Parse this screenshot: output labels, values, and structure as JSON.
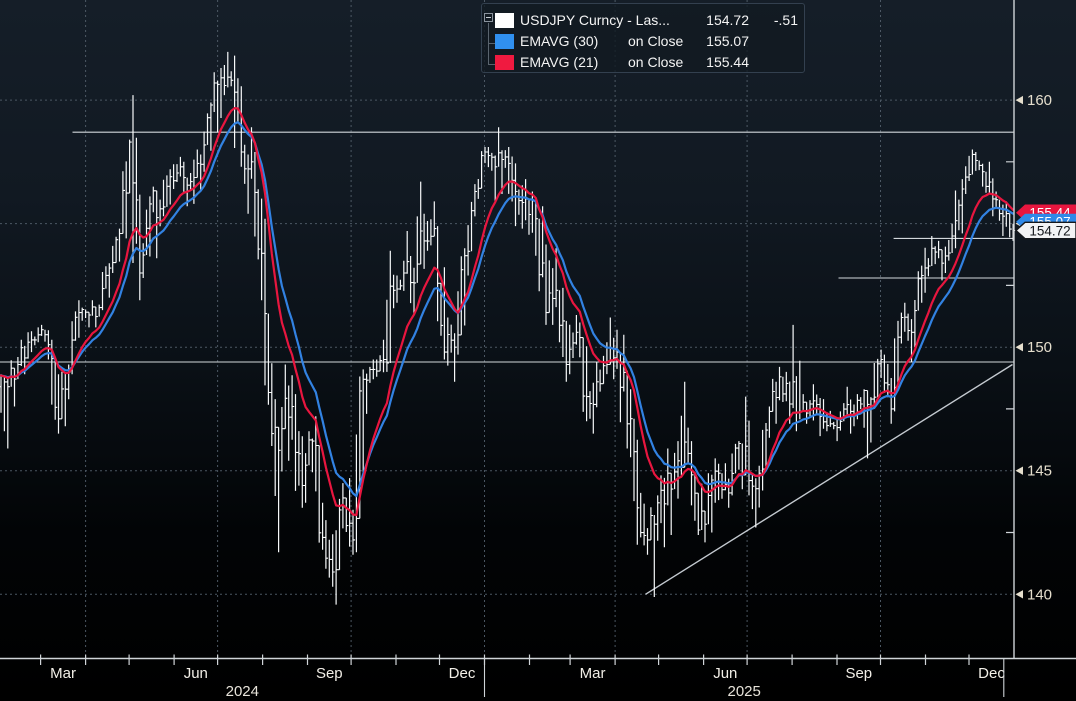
{
  "legend": {
    "rows": [
      {
        "label": "USDJPY Curncy - Las...",
        "value": "154.72",
        "change": "-.51",
        "swatch": "#ffffff"
      },
      {
        "label": "EMAVG (30)",
        "mid": "on Close",
        "value": "155.07",
        "swatch": "#3090f0"
      },
      {
        "label": "EMAVG (21)",
        "mid": "on Close",
        "value": "155.44",
        "swatch": "#f01a40"
      }
    ]
  },
  "chart_data": {
    "type": "bar",
    "title": "USDJPY Curncy with EMAVG(30) and EMAVG(21) on Close",
    "frequency_of_samples": "weekly [close, high, low]",
    "x_start_date": "2024-02-02",
    "x_end_date": "2026-01-01",
    "bars": [
      [
        148.4,
        148.9,
        145.9
      ],
      [
        149.3,
        149.6,
        147.6
      ],
      [
        150.2,
        150.6,
        148.9
      ],
      [
        150.5,
        150.8,
        149.8
      ],
      [
        150.1,
        150.9,
        149.5
      ],
      [
        147.1,
        150.3,
        146.5
      ],
      [
        149.0,
        149.3,
        146.8
      ],
      [
        151.4,
        151.9,
        148.9
      ],
      [
        151.3,
        151.6,
        150.8
      ],
      [
        151.6,
        151.9,
        150.8
      ],
      [
        153.2,
        153.4,
        151.5
      ],
      [
        154.6,
        154.8,
        153.0
      ],
      [
        158.3,
        158.4,
        154.4
      ],
      [
        153.0,
        160.2,
        151.9
      ],
      [
        155.8,
        156.1,
        152.8
      ],
      [
        155.6,
        156.5,
        153.6
      ],
      [
        156.9,
        157.2,
        155.3
      ],
      [
        157.3,
        157.7,
        156.4
      ],
      [
        156.7,
        157.5,
        155.7
      ],
      [
        157.4,
        158.0,
        155.8
      ],
      [
        159.8,
        159.9,
        157.1
      ],
      [
        160.9,
        161.3,
        158.7
      ],
      [
        160.8,
        161.95,
        160.2
      ],
      [
        157.9,
        161.8,
        157.3
      ],
      [
        157.5,
        158.9,
        155.4
      ],
      [
        153.8,
        157.9,
        151.9
      ],
      [
        146.5,
        155.2,
        146.0
      ],
      [
        146.7,
        147.9,
        141.7
      ],
      [
        147.6,
        149.3,
        145.4
      ],
      [
        144.4,
        148.1,
        143.5
      ],
      [
        146.2,
        146.6,
        143.7
      ],
      [
        142.3,
        147.2,
        141.8
      ],
      [
        140.9,
        143.0,
        140.3
      ],
      [
        143.9,
        144.5,
        139.58
      ],
      [
        142.2,
        144.7,
        141.6
      ],
      [
        148.7,
        149.1,
        141.7
      ],
      [
        149.1,
        149.5,
        147.3
      ],
      [
        149.5,
        150.3,
        148.8
      ],
      [
        152.3,
        153.9,
        149.0
      ],
      [
        153.0,
        153.5,
        151.8
      ],
      [
        152.6,
        154.7,
        151.3
      ],
      [
        154.3,
        156.7,
        152.6
      ],
      [
        154.8,
        155.9,
        153.9
      ],
      [
        149.8,
        154.9,
        149.5
      ],
      [
        150.0,
        151.2,
        148.6
      ],
      [
        153.7,
        154.0,
        149.7
      ],
      [
        156.3,
        156.6,
        152.9
      ],
      [
        157.9,
        158.1,
        156.0
      ],
      [
        157.3,
        158.1,
        155.9
      ],
      [
        157.7,
        158.9,
        156.2
      ],
      [
        156.3,
        158.1,
        154.9
      ],
      [
        156.0,
        156.8,
        154.8
      ],
      [
        155.2,
        156.3,
        153.7
      ],
      [
        151.4,
        155.7,
        150.9
      ],
      [
        152.3,
        154.0,
        150.9
      ],
      [
        149.3,
        152.4,
        148.6
      ],
      [
        150.6,
        151.3,
        148.9
      ],
      [
        148.0,
        151.0,
        147.0
      ],
      [
        148.6,
        149.4,
        146.5
      ],
      [
        149.3,
        150.2,
        148.2
      ],
      [
        149.8,
        151.2,
        148.7
      ],
      [
        146.9,
        150.5,
        145.9
      ],
      [
        143.5,
        148.3,
        142.0
      ],
      [
        142.2,
        144.1,
        141.6
      ],
      [
        143.7,
        144.0,
        139.89
      ],
      [
        144.9,
        145.9,
        141.9
      ],
      [
        145.4,
        146.2,
        142.4
      ],
      [
        145.7,
        148.6,
        144.8
      ],
      [
        142.6,
        146.2,
        142.4
      ],
      [
        144.0,
        144.9,
        142.1
      ],
      [
        144.9,
        145.5,
        142.5
      ],
      [
        144.1,
        145.3,
        143.5
      ],
      [
        146.1,
        146.2,
        144.0
      ],
      [
        144.6,
        148.0,
        144.0
      ],
      [
        144.9,
        145.2,
        142.7
      ],
      [
        147.4,
        147.6,
        144.2
      ],
      [
        148.8,
        149.2,
        146.9
      ],
      [
        147.7,
        149.0,
        146.9
      ],
      [
        147.4,
        150.9,
        146.6
      ],
      [
        147.7,
        148.1,
        146.9
      ],
      [
        147.2,
        148.5,
        146.4
      ],
      [
        146.9,
        147.9,
        146.6
      ],
      [
        147.0,
        147.4,
        146.2
      ],
      [
        147.4,
        148.4,
        146.5
      ],
      [
        147.7,
        148.1,
        146.8
      ],
      [
        147.9,
        148.3,
        145.5
      ],
      [
        149.5,
        149.9,
        147.5
      ],
      [
        147.5,
        149.7,
        146.9
      ],
      [
        151.2,
        151.4,
        147.4
      ],
      [
        150.6,
        151.8,
        149.4
      ],
      [
        152.9,
        153.3,
        150.0
      ],
      [
        154.0,
        154.5,
        152.2
      ],
      [
        153.4,
        154.3,
        152.7
      ],
      [
        154.5,
        155.0,
        153.0
      ],
      [
        156.4,
        156.8,
        154.0
      ],
      [
        157.8,
        158.0,
        156.2
      ],
      [
        157.1,
        157.9,
        156.5
      ],
      [
        156.0,
        157.5,
        155.3
      ],
      [
        155.3,
        156.3,
        154.5
      ],
      [
        154.72,
        155.9,
        154.3
      ]
    ],
    "moving_averages": [
      {
        "name": "EMAVG (30)",
        "period_days": 30,
        "last_value": 155.07,
        "color": "#3282e2"
      },
      {
        "name": "EMAVG (21)",
        "period_days": 21,
        "last_value": 155.44,
        "color": "#e8163f"
      }
    ],
    "last": {
      "price": "154.72",
      "change": "-.51"
    },
    "price_tags": [
      {
        "text": "155.44",
        "price": 155.44,
        "bg": "#e8163f",
        "fg": "#ffffff",
        "outlined": false
      },
      {
        "text": "155.07",
        "price": 155.07,
        "bg": "#2f89e8",
        "fg": "#ffffff",
        "outlined": false
      },
      {
        "text": "154.72",
        "price": 154.72,
        "bg": "#f2f3f4",
        "fg": "#15181c",
        "outlined": true
      }
    ],
    "y_axis": {
      "lim": [
        137.4,
        164.05
      ],
      "ticks": [
        {
          "v": 160,
          "label": "160"
        },
        {
          "v": 155,
          "label": "155"
        },
        {
          "v": 150,
          "label": "150"
        },
        {
          "v": 145,
          "label": "145"
        },
        {
          "v": 140,
          "label": "140"
        }
      ],
      "minor_ticks": [
        157.5,
        152.5,
        147.5,
        142.5
      ]
    },
    "x_axis": {
      "month_labels": [
        "Mar",
        "Jun",
        "Sep",
        "Dec"
      ],
      "year_labels": [
        "2024",
        "2025"
      ],
      "year_dividers": [
        "2025-01-01",
        "2025-12-25"
      ],
      "grid": "quarterly-dotted"
    },
    "levels": [
      {
        "price": 158.7,
        "from": "2024-03-23"
      },
      {
        "price": 149.4,
        "from": "2024-02-02"
      },
      {
        "price": 152.8,
        "from": "2025-09-02"
      },
      {
        "price": 154.4,
        "from": "2025-10-10"
      }
    ],
    "trendline": {
      "from": {
        "date": "2025-04-22",
        "price": 140.0
      },
      "to": {
        "date": "2025-12-31",
        "price": 149.3
      }
    },
    "colors": {
      "bar": "#f7f9fa",
      "grid": "#535f6b",
      "axis": "#cfd4d8",
      "level_line": "#d2d7db",
      "trend_line": "#c4cad0",
      "bg_top": "#151e28",
      "bg_bottom": "#000000"
    }
  }
}
